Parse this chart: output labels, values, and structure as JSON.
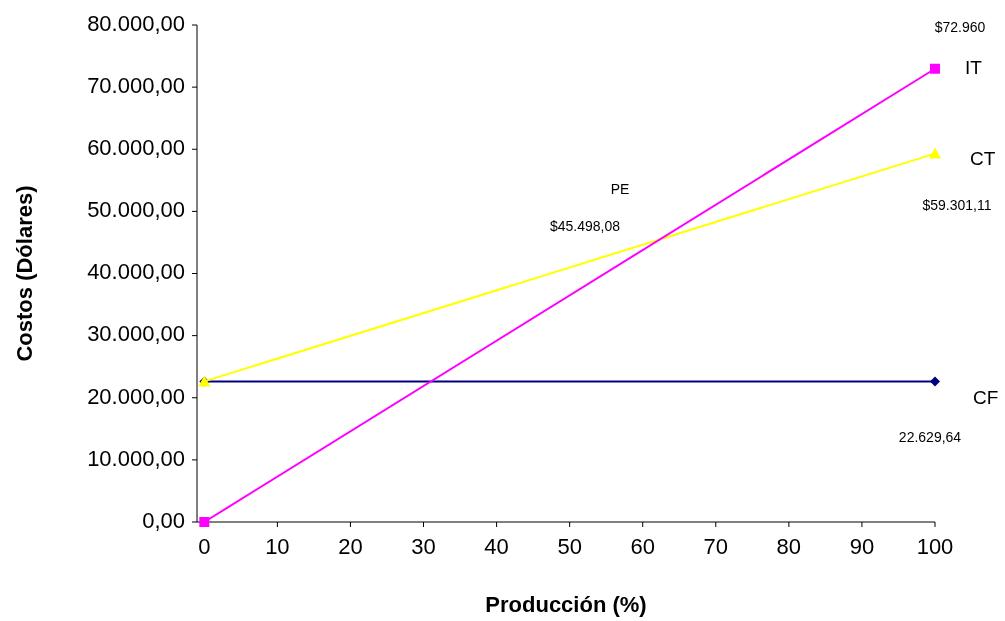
{
  "chart_data": {
    "type": "line",
    "xlabel": "Producción (%)",
    "ylabel": "Costos (Dólares)",
    "x": [
      0,
      100
    ],
    "series": [
      {
        "name": "IT",
        "color": "#ff00ff",
        "marker": "square",
        "values": [
          0,
          72960
        ]
      },
      {
        "name": "CT",
        "color": "#ffff00",
        "marker": "triangle",
        "values": [
          22629.64,
          59301.11
        ]
      },
      {
        "name": "CF",
        "color": "#000080",
        "marker": "diamond",
        "values": [
          22629.64,
          22629.64
        ]
      }
    ],
    "xlim": [
      -1,
      100
    ],
    "xticks": [
      0,
      10,
      20,
      30,
      40,
      50,
      60,
      70,
      80,
      90,
      100
    ],
    "ylim": [
      0,
      80000
    ],
    "yticks": [
      {
        "value": 0,
        "label": "0,00"
      },
      {
        "value": 10000,
        "label": "10.000,00"
      },
      {
        "value": 20000,
        "label": "20.000,00"
      },
      {
        "value": 30000,
        "label": "30.000,00"
      },
      {
        "value": 40000,
        "label": "40.000,00"
      },
      {
        "value": 50000,
        "label": "50.000,00"
      },
      {
        "value": 60000,
        "label": "60.000,00"
      },
      {
        "value": 70000,
        "label": "70.000,00"
      },
      {
        "value": 80000,
        "label": "80.000,00"
      }
    ],
    "grid": false,
    "legend": false,
    "line_style": "solid",
    "annotations": [
      "$72.960",
      "$59.301,11",
      "22.629,64",
      "PE",
      "$45.498,08"
    ]
  }
}
